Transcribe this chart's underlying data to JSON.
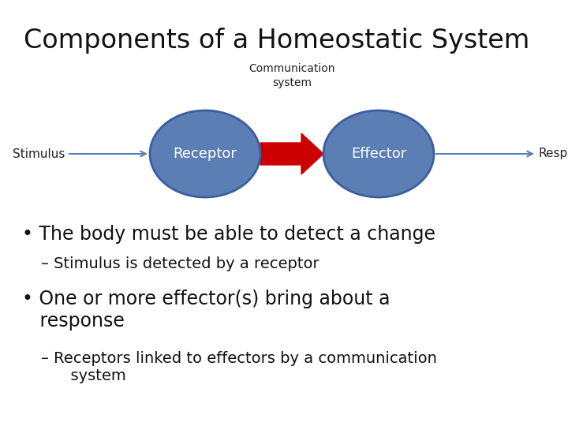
{
  "title": "Components of a Homeostatic System",
  "title_fontsize": 24,
  "background_color": "#ffffff",
  "ellipse_color": "#5b7eb5",
  "ellipse_edge_color": "#3a5f9e",
  "ellipse_text_color": "#ffffff",
  "arrow_color": "#cc0000",
  "line_color": "#5b7eb5",
  "receptor_label": "Receptor",
  "effector_label": "Effector",
  "comm_label": "Communication\nsystem",
  "stimulus_label": "Stimulus",
  "response_label": "Response",
  "bullet1": "• The body must be able to detect a change",
  "sub1": "– Stimulus is detected by a receptor",
  "bullet2": "• One or more effector(s) bring about a\n   response",
  "sub2": "– Receptors linked to effectors by a communication\n      system",
  "bullet_fontsize": 17,
  "sub_fontsize": 14,
  "ellipse_fontsize": 13,
  "label_fontsize": 11,
  "comm_fontsize": 10
}
